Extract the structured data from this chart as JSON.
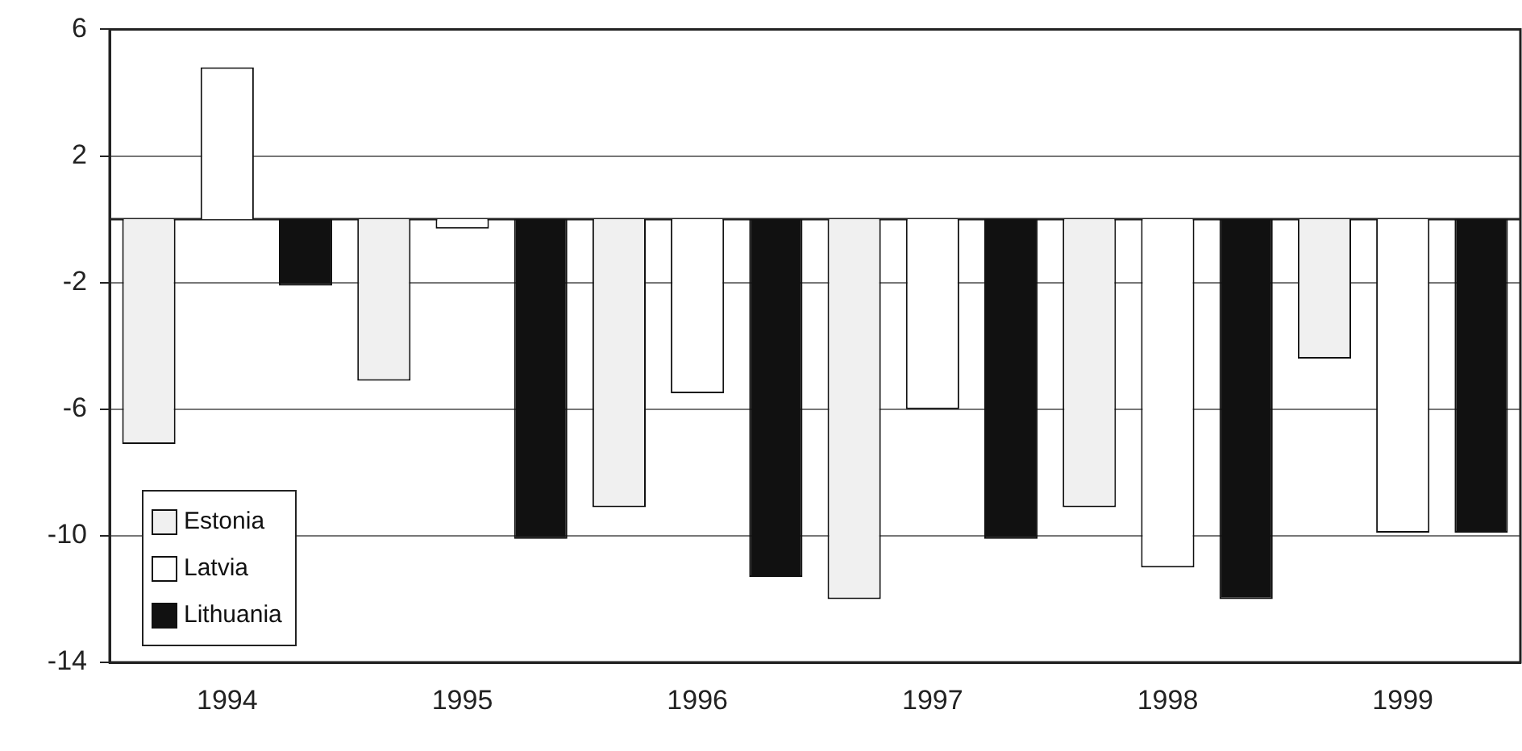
{
  "chart_data": {
    "type": "bar",
    "categories": [
      "1994",
      "1995",
      "1996",
      "1997",
      "1998",
      "1999"
    ],
    "series": [
      {
        "name": "Estonia",
        "color": "#f0f0f0",
        "values": [
          -7.1,
          -5.1,
          -9.1,
          -12.0,
          -9.1,
          -4.4
        ]
      },
      {
        "name": "Latvia",
        "color": "#ffffff",
        "values": [
          4.8,
          -0.3,
          -5.5,
          -6.0,
          -11.0,
          -9.9
        ]
      },
      {
        "name": "Lithuania",
        "color": "#111111",
        "values": [
          -2.1,
          -10.1,
          -11.3,
          -10.1,
          -12.0,
          -9.9
        ]
      }
    ],
    "ylim": [
      -14,
      6
    ],
    "yticks": [
      6,
      2,
      -2,
      -6,
      -10,
      -14
    ],
    "grid": "y",
    "legend": "bottom left"
  }
}
